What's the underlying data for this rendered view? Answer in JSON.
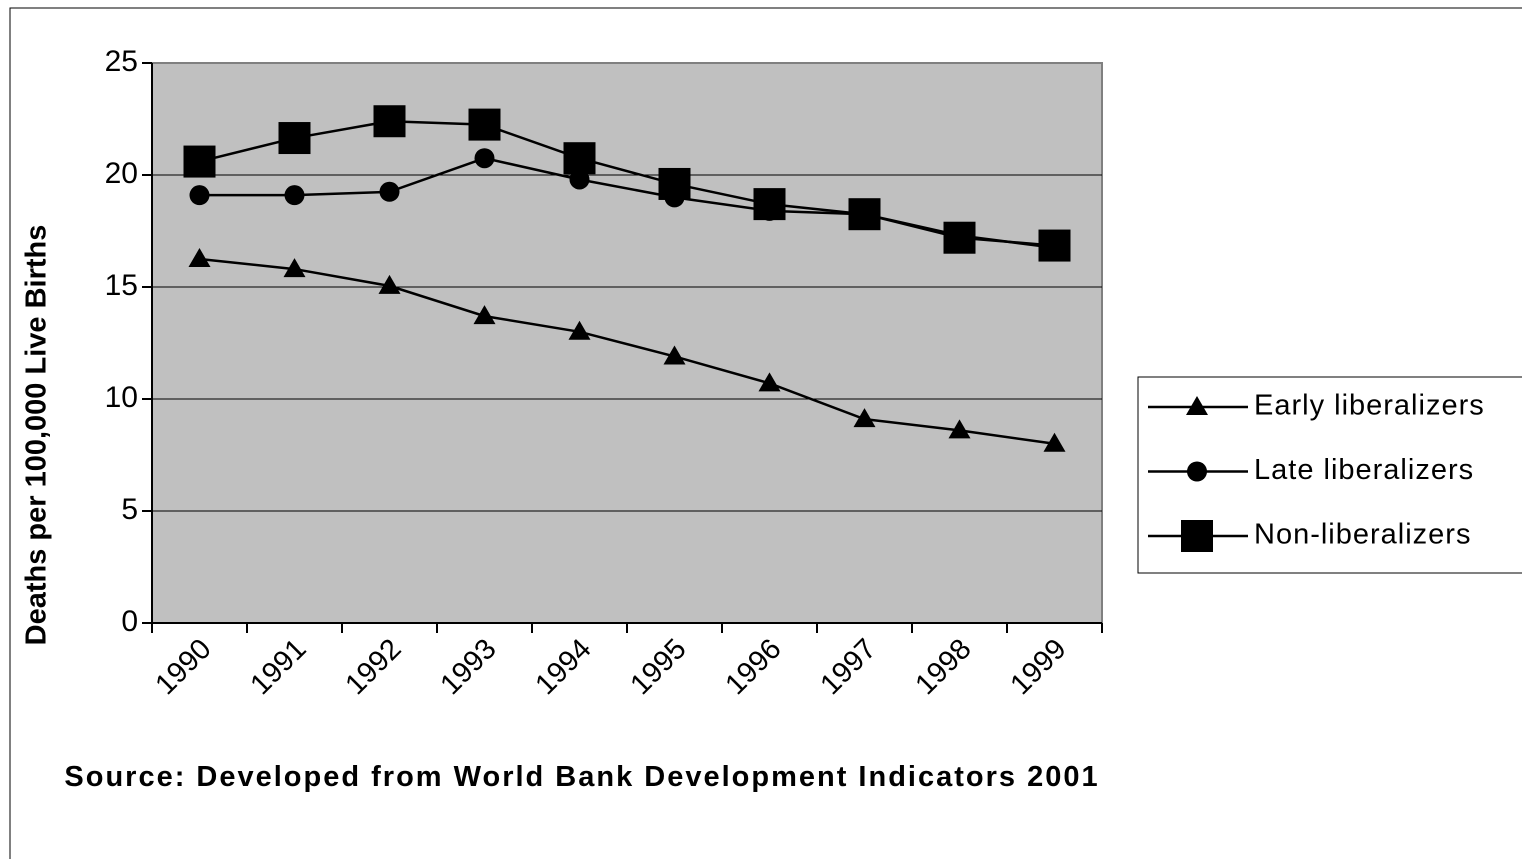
{
  "chart_data": {
    "type": "line",
    "y_label": "Deaths per 100,000 Live Births",
    "source": "Source: Developed from World Bank Development Indicators 2001",
    "categories": [
      "1990",
      "1991",
      "1992",
      "1993",
      "1994",
      "1995",
      "1996",
      "1997",
      "1998",
      "1999"
    ],
    "series": [
      {
        "name": "Early liberalizers",
        "color": "#000000",
        "marker": "triangle",
        "values": [
          16.25,
          15.8,
          15.05,
          13.7,
          13.0,
          11.9,
          10.7,
          9.1,
          8.6,
          8.0
        ]
      },
      {
        "name": "Late liberalizers",
        "color": "#000000",
        "marker": "circle",
        "values": [
          19.1,
          19.1,
          19.25,
          20.75,
          19.8,
          19.0,
          18.4,
          18.25,
          17.3,
          16.75
        ]
      },
      {
        "name": "Non-liberalizers",
        "color": "#000000",
        "marker": "square",
        "values": [
          20.6,
          21.65,
          22.4,
          22.25,
          20.75,
          19.6,
          18.7,
          18.25,
          17.2,
          16.85
        ]
      }
    ],
    "ylim": [
      0,
      25
    ],
    "yticks": [
      0,
      5,
      10,
      15,
      20,
      25
    ],
    "grid": true,
    "legend": "right"
  }
}
